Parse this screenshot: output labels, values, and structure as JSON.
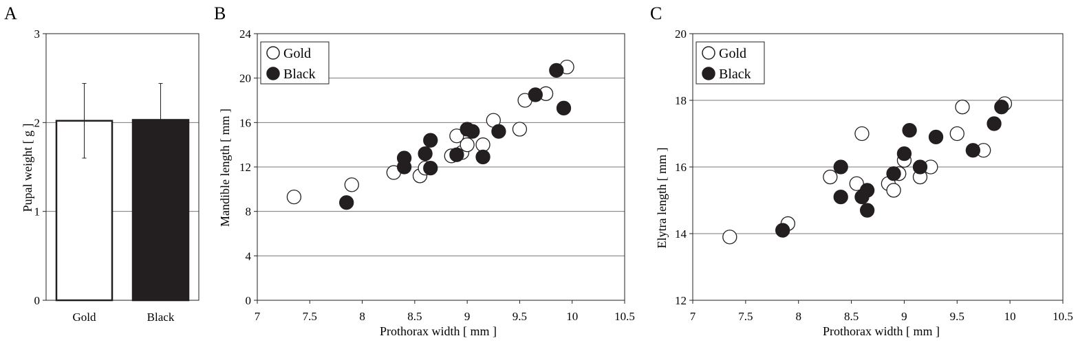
{
  "chart_data": [
    {
      "panel": "A",
      "type": "bar",
      "categories": [
        "Gold",
        "Black"
      ],
      "values": [
        2.02,
        2.03
      ],
      "errors": [
        0.42,
        0.41
      ],
      "bar_colors": [
        "#ffffff",
        "#231f20"
      ],
      "xlabel": "",
      "ylabel": "Pupal weight [ g ]",
      "ylim": [
        0,
        3
      ],
      "yticks": [
        "0",
        "1",
        "2",
        "3"
      ],
      "grid": true
    },
    {
      "panel": "B",
      "type": "scatter",
      "xlabel": "Prothorax width [ mm ]",
      "ylabel": "Mandible length [ mm ]",
      "xlim": [
        7,
        10.5
      ],
      "ylim": [
        0,
        24
      ],
      "xticks": [
        "7",
        "7.5",
        "8",
        "8.5",
        "9",
        "9.5",
        "10",
        "10.5"
      ],
      "yticks": [
        "0",
        "4",
        "8",
        "12",
        "16",
        "20",
        "24"
      ],
      "grid": true,
      "legend_position": "top-left",
      "series": [
        {
          "name": "Gold",
          "color": "#ffffff",
          "x": [
            7.35,
            7.9,
            8.3,
            8.55,
            8.6,
            8.85,
            8.9,
            8.95,
            9.0,
            9.15,
            9.25,
            9.5,
            9.55,
            9.75,
            9.95
          ],
          "y": [
            9.3,
            10.4,
            11.5,
            11.2,
            11.9,
            13.0,
            14.8,
            13.3,
            14.0,
            14.0,
            16.2,
            15.4,
            18.0,
            18.6,
            21.0
          ]
        },
        {
          "name": "Black",
          "color": "#231f20",
          "x": [
            7.85,
            8.4,
            8.4,
            8.6,
            8.65,
            8.65,
            8.9,
            9.0,
            9.05,
            9.15,
            9.3,
            9.65,
            9.85,
            9.92
          ],
          "y": [
            8.8,
            12.0,
            12.8,
            13.2,
            14.4,
            11.9,
            13.1,
            15.4,
            15.2,
            12.9,
            15.2,
            18.5,
            20.7,
            17.3
          ]
        }
      ]
    },
    {
      "panel": "C",
      "type": "scatter",
      "xlabel": "Prothorax width [ mm ]",
      "ylabel": "Elytra length [ mm ]",
      "xlim": [
        7,
        10.5
      ],
      "ylim": [
        12,
        20
      ],
      "xticks": [
        "7",
        "7.5",
        "8",
        "8.5",
        "9",
        "9.5",
        "10",
        "10.5"
      ],
      "yticks": [
        "12",
        "14",
        "16",
        "18",
        "20"
      ],
      "grid": true,
      "legend_position": "top-left",
      "series": [
        {
          "name": "Gold",
          "color": "#ffffff",
          "x": [
            7.35,
            7.9,
            8.3,
            8.55,
            8.6,
            8.85,
            8.9,
            8.95,
            9.0,
            9.15,
            9.25,
            9.5,
            9.55,
            9.75,
            9.95
          ],
          "y": [
            13.9,
            14.3,
            15.7,
            15.5,
            17.0,
            15.5,
            15.3,
            15.8,
            16.2,
            15.7,
            16.0,
            17.0,
            17.8,
            16.5,
            17.9
          ]
        },
        {
          "name": "Black",
          "color": "#231f20",
          "x": [
            7.85,
            8.4,
            8.4,
            8.6,
            8.65,
            8.65,
            8.9,
            9.0,
            9.05,
            9.15,
            9.3,
            9.65,
            9.85,
            9.92
          ],
          "y": [
            14.1,
            16.0,
            15.1,
            15.1,
            15.3,
            14.7,
            15.8,
            16.4,
            17.1,
            16.0,
            16.9,
            16.5,
            17.3,
            17.8
          ]
        }
      ]
    }
  ]
}
